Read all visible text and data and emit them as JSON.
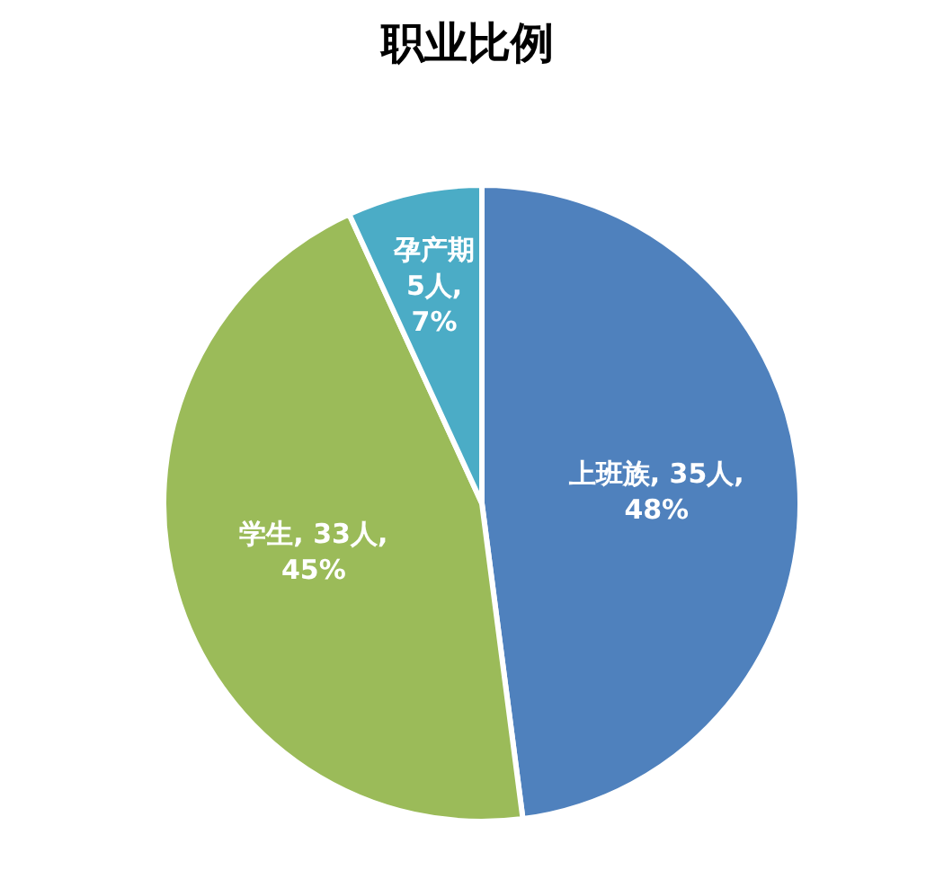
{
  "chart_data": {
    "type": "pie",
    "title": "职业比例",
    "categories": [
      "上班族",
      "学生",
      "孕产期"
    ],
    "values": [
      35,
      33,
      5
    ],
    "value_labels": [
      "35人, 48%",
      "33人, 45%",
      "5人, 7%"
    ],
    "colors": [
      "#4f81bd",
      "#9bbb59",
      "#4bacc6"
    ],
    "legend": false
  }
}
